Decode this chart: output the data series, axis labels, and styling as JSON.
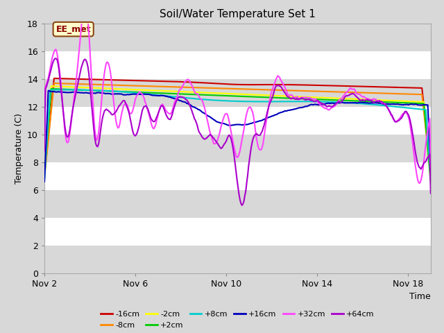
{
  "title": "Soil/Water Temperature Set 1",
  "xlabel": "Time",
  "ylabel": "Temperature (C)",
  "ylim": [
    0,
    18
  ],
  "yticks": [
    0,
    2,
    4,
    6,
    8,
    10,
    12,
    14,
    16,
    18
  ],
  "xtick_positions": [
    0,
    4,
    8,
    12,
    16
  ],
  "xtick_labels": [
    "Nov 2",
    "Nov 6",
    "Nov 10",
    "Nov 14",
    "Nov 18"
  ],
  "annotation_label": "EE_met",
  "series_colors": {
    "-16cm": "#cc0000",
    "-8cm": "#ff8800",
    "-2cm": "#ffff00",
    "+2cm": "#00cc00",
    "+8cm": "#00cccc",
    "+16cm": "#0000bb",
    "+32cm": "#ff44ff",
    "+64cm": "#aa00cc"
  },
  "legend_order": [
    "-16cm",
    "-8cm",
    "-2cm",
    "+2cm",
    "+8cm",
    "+16cm",
    "+32cm",
    "+64cm"
  ],
  "white_band_color": "#ffffff",
  "gray_band_color": "#d8d8d8",
  "fig_bg_color": "#d8d8d8",
  "n_points": 400
}
